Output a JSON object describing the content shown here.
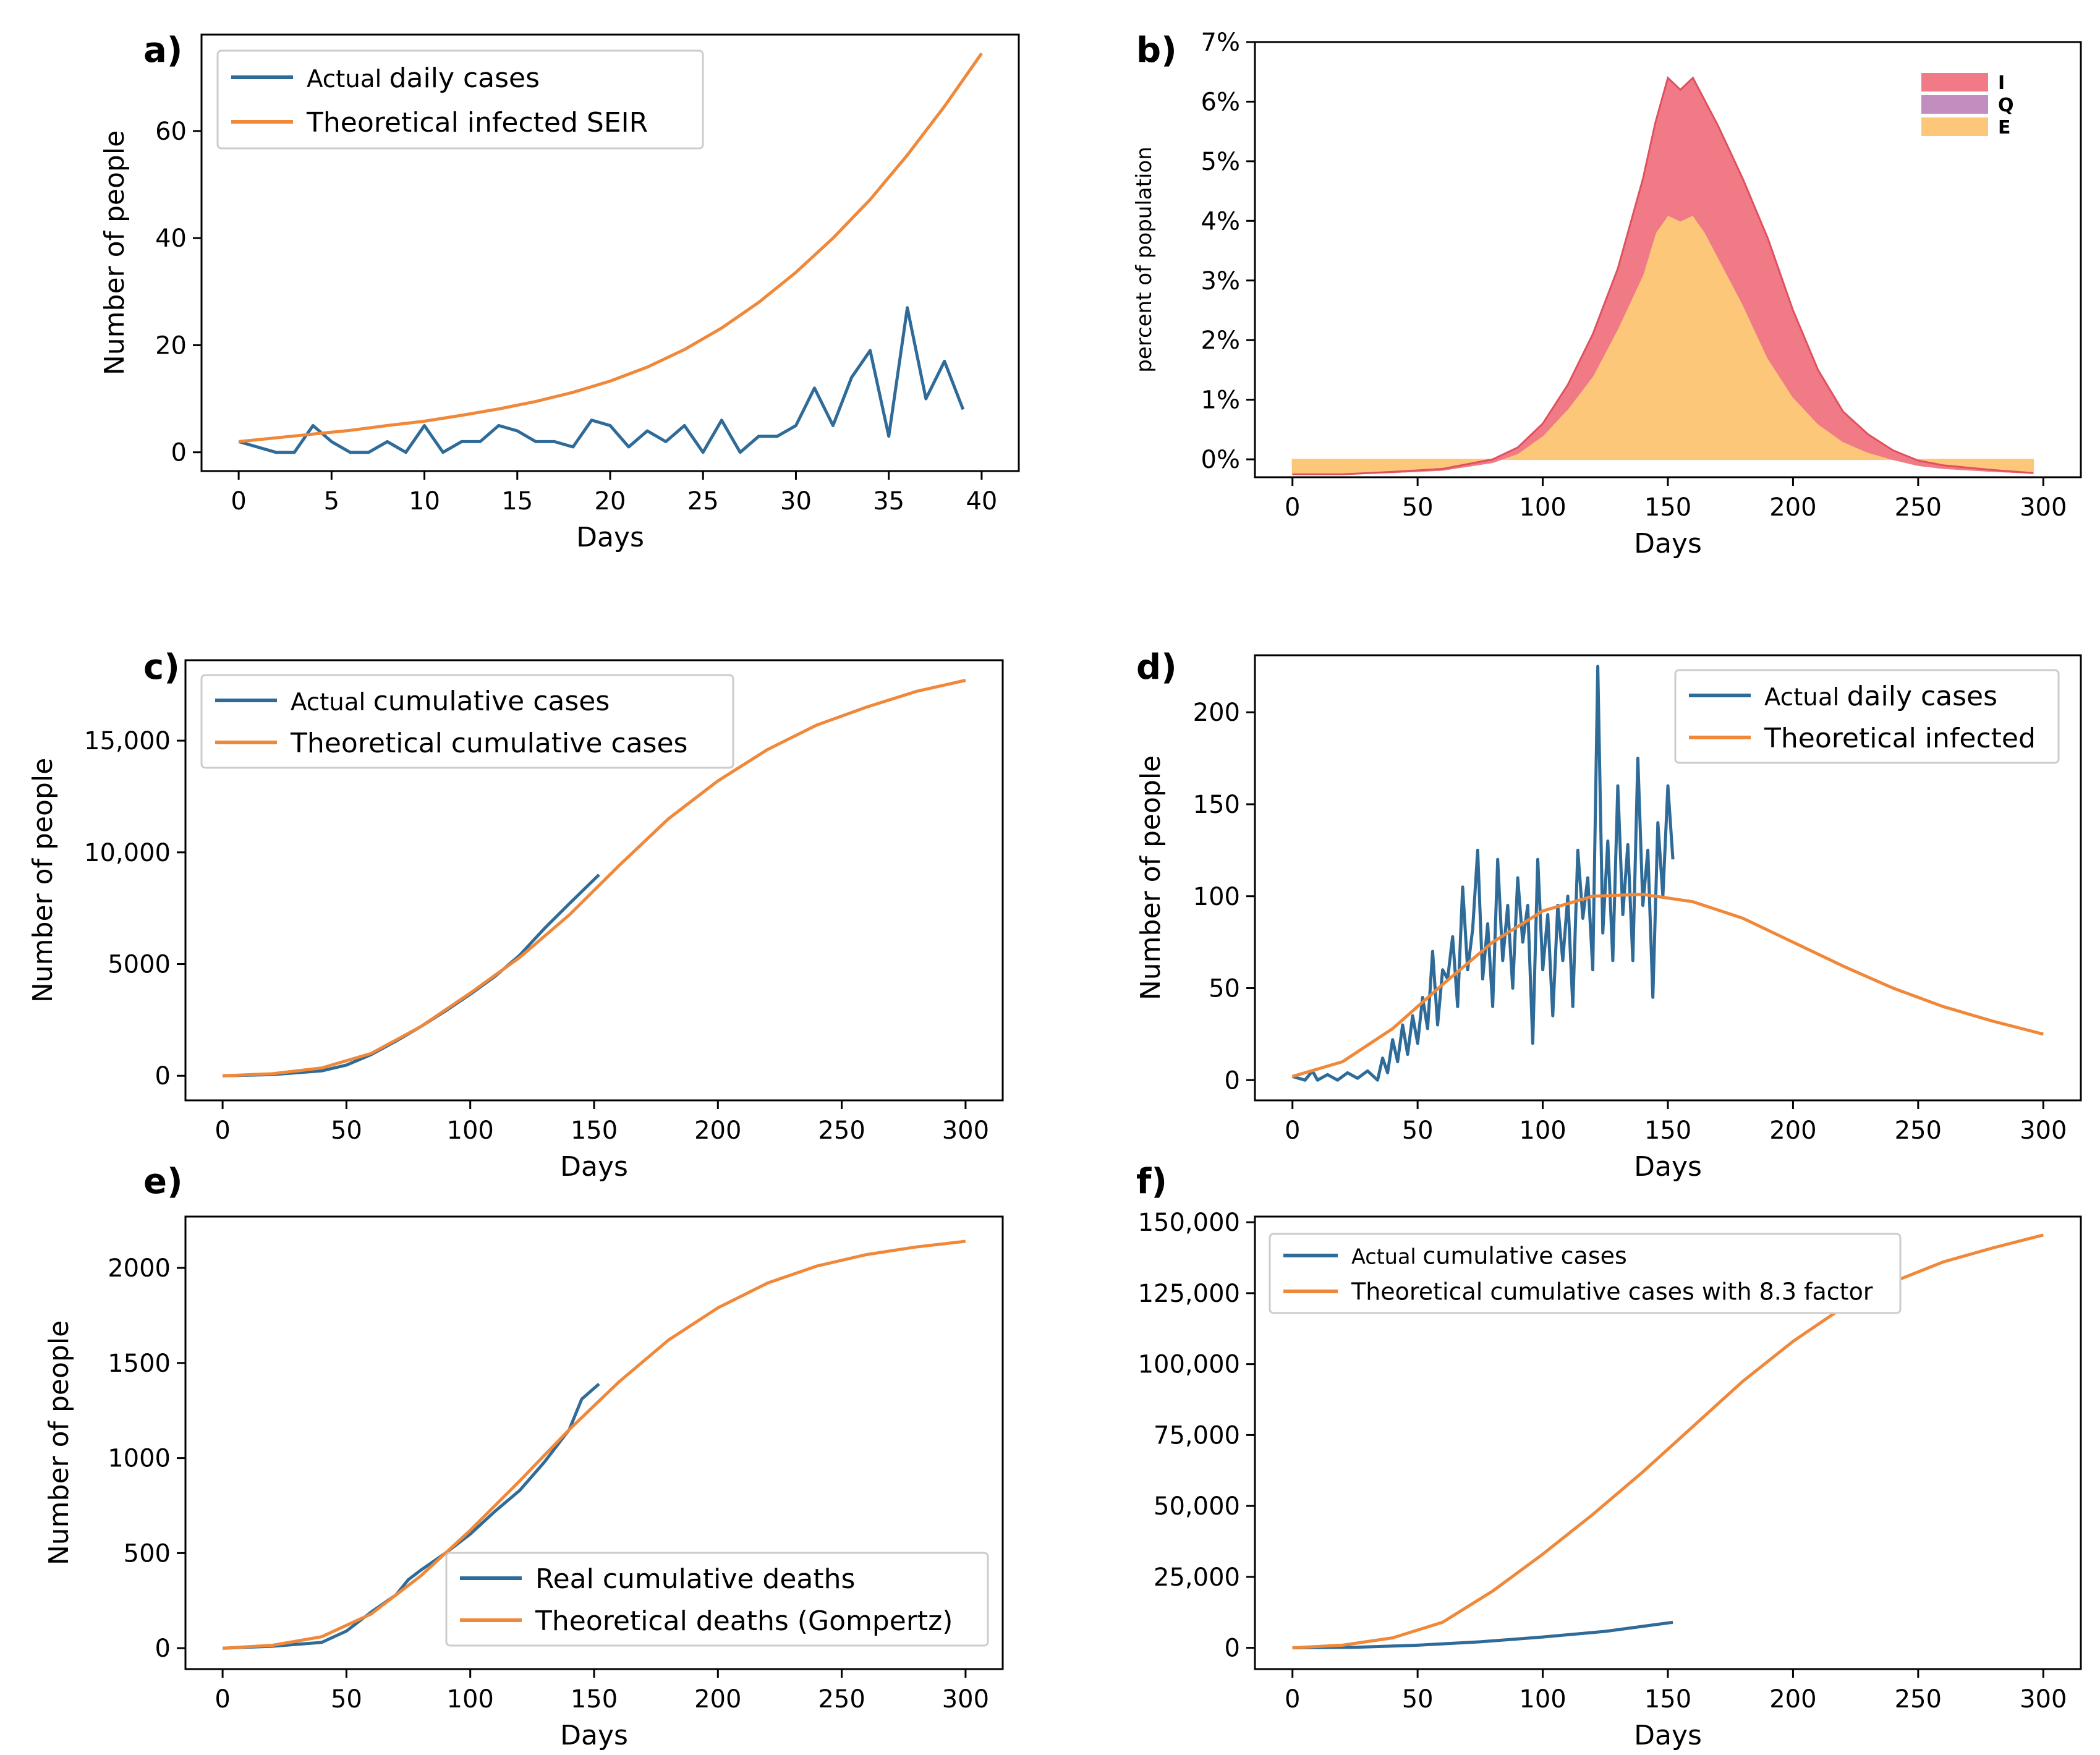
{
  "colors": {
    "blue": "#2f6b98",
    "orange": "#f0883a",
    "red": "#f07a85",
    "purple": "#c28ec0",
    "yellow": "#fdc77a"
  },
  "chart_data": [
    {
      "id": "a",
      "panel_label": "a)",
      "type": "line",
      "xlabel": "Days",
      "ylabel": "Number of  people",
      "xlim": [
        -2,
        42
      ],
      "ylim": [
        -3.5,
        78
      ],
      "xticks": [
        0,
        5,
        10,
        15,
        20,
        25,
        30,
        35,
        40
      ],
      "xtick_labels": [
        "0",
        "5",
        "10",
        "15",
        "20",
        "25",
        "30",
        "35",
        "40"
      ],
      "yticks": [
        0,
        20,
        40,
        60
      ],
      "ytick_labels": [
        "0",
        "20",
        "40",
        "60"
      ],
      "series": [
        {
          "name": "Actual daily cases",
          "legend_prefix": "Actual",
          "legend_rest": "daily cases",
          "color": "#2f6b98",
          "x": [
            0,
            1,
            2,
            3,
            4,
            5,
            6,
            7,
            8,
            9,
            10,
            11,
            12,
            13,
            14,
            15,
            16,
            17,
            18,
            19,
            20,
            21,
            22,
            23,
            24,
            25,
            26,
            27,
            28,
            29,
            30,
            31,
            32,
            33,
            34,
            35,
            36,
            37,
            38,
            39
          ],
          "y": [
            2,
            1,
            0,
            0,
            5,
            2,
            0,
            0,
            2,
            0,
            5,
            0,
            2,
            2,
            5,
            4,
            2,
            2,
            1,
            6,
            5,
            1,
            4,
            2,
            5,
            0,
            6,
            0,
            3,
            3,
            5,
            12,
            5,
            14,
            19,
            3,
            27,
            10,
            17,
            8
          ]
        },
        {
          "name": "Theoretical infected SEIR",
          "legend_prefix": "",
          "legend_rest": "Theoretical infected SEIR",
          "color": "#f0883a",
          "x": [
            0,
            2,
            4,
            6,
            8,
            10,
            12,
            14,
            16,
            18,
            20,
            22,
            24,
            26,
            28,
            30,
            32,
            34,
            36,
            38,
            40
          ],
          "y": [
            2.0,
            2.7,
            3.4,
            4.1,
            5.0,
            5.8,
            6.9,
            8.1,
            9.5,
            11.2,
            13.3,
            15.9,
            19.2,
            23.2,
            28.0,
            33.6,
            40.0,
            47.2,
            55.5,
            64.6,
            74.5
          ]
        }
      ]
    },
    {
      "id": "b",
      "panel_label": "b)",
      "type": "area",
      "xlabel": "Days",
      "ylabel": "percent of population",
      "xlim": [
        -15,
        315
      ],
      "ylim": [
        -0.3,
        7.0
      ],
      "xticks": [
        0,
        50,
        100,
        150,
        200,
        250,
        300
      ],
      "xtick_labels": [
        "0",
        "50",
        "100",
        "150",
        "200",
        "250",
        "300"
      ],
      "yticks": [
        0,
        1,
        2,
        3,
        4,
        5,
        6,
        7
      ],
      "ytick_labels": [
        "0%",
        "1%",
        "2%",
        "3%",
        "4%",
        "5%",
        "6%",
        "7%"
      ],
      "x": [
        0,
        20,
        40,
        60,
        80,
        90,
        100,
        110,
        120,
        130,
        140,
        145,
        150,
        155,
        160,
        165,
        170,
        180,
        190,
        200,
        210,
        220,
        230,
        240,
        250,
        260,
        280,
        296
      ],
      "series": [
        {
          "name": "E",
          "color": "#fdc77a",
          "values": [
            -0.25,
            -0.25,
            -0.22,
            -0.18,
            -0.05,
            0.1,
            0.4,
            0.85,
            1.4,
            2.2,
            3.1,
            3.8,
            4.1,
            4.0,
            4.1,
            3.8,
            3.4,
            2.6,
            1.7,
            1.05,
            0.6,
            0.3,
            0.12,
            0.0,
            -0.1,
            -0.15,
            -0.2,
            -0.23
          ]
        },
        {
          "name": "Q",
          "color": "#c28ec0",
          "values": [
            0,
            0,
            0,
            0,
            0,
            0,
            0,
            0,
            0,
            0,
            0,
            0,
            0,
            0,
            0,
            0,
            0,
            0,
            0,
            0,
            0,
            0,
            0,
            0,
            0,
            0,
            0,
            0
          ]
        },
        {
          "name": "I",
          "color": "#f07a85",
          "values": [
            0,
            0,
            0.01,
            0.02,
            0.05,
            0.1,
            0.2,
            0.4,
            0.7,
            1.0,
            1.6,
            1.85,
            2.3,
            2.2,
            2.3,
            2.2,
            2.2,
            2.1,
            2.0,
            1.45,
            0.9,
            0.5,
            0.3,
            0.15,
            0.08,
            0.05,
            0.02,
            0.0
          ]
        }
      ]
    },
    {
      "id": "c",
      "panel_label": "c)",
      "type": "line",
      "xlabel": "Days",
      "ylabel": "Number of  people",
      "xlim": [
        -15,
        315
      ],
      "ylim": [
        -1100,
        18600
      ],
      "xticks": [
        0,
        50,
        100,
        150,
        200,
        250,
        300
      ],
      "xtick_labels": [
        "0",
        "50",
        "100",
        "150",
        "200",
        "250",
        "300"
      ],
      "yticks": [
        0,
        5000,
        10000,
        15000
      ],
      "ytick_labels": [
        "0",
        "5000",
        "10,000",
        "15,000"
      ],
      "series": [
        {
          "name": "Actual cumulative cases",
          "legend_prefix": "Actual",
          "legend_rest": "cumulative cases",
          "color": "#2f6b98",
          "x": [
            0,
            20,
            40,
            50,
            60,
            70,
            80,
            90,
            100,
            110,
            120,
            130,
            140,
            152
          ],
          "y": [
            0,
            50,
            220,
            480,
            950,
            1550,
            2200,
            2900,
            3650,
            4450,
            5400,
            6600,
            7700,
            9000
          ]
        },
        {
          "name": "Theoretical cumulative cases",
          "legend_prefix": "",
          "legend_rest": "Theoretical cumulative cases",
          "color": "#f0883a",
          "x": [
            0,
            20,
            40,
            60,
            80,
            100,
            120,
            140,
            160,
            180,
            200,
            220,
            240,
            260,
            280,
            300
          ],
          "y": [
            0,
            90,
            350,
            1000,
            2200,
            3700,
            5300,
            7200,
            9400,
            11500,
            13200,
            14600,
            15700,
            16500,
            17200,
            17700
          ]
        }
      ]
    },
    {
      "id": "d",
      "panel_label": "d)",
      "type": "line",
      "xlabel": "Days",
      "ylabel": "Number of  people",
      "xlim": [
        -15,
        315
      ],
      "ylim": [
        -11,
        231
      ],
      "xticks": [
        0,
        50,
        100,
        150,
        200,
        250,
        300
      ],
      "xtick_labels": [
        "0",
        "50",
        "100",
        "150",
        "200",
        "250",
        "300"
      ],
      "yticks": [
        0,
        50,
        100,
        150,
        200
      ],
      "ytick_labels": [
        "0",
        "50",
        "100",
        "150",
        "200"
      ],
      "series": [
        {
          "name": "Actual daily cases",
          "legend_prefix": "Actual",
          "legend_rest": "daily cases",
          "color": "#2f6b98",
          "x": [
            0,
            5,
            8,
            10,
            14,
            18,
            22,
            26,
            30,
            34,
            36,
            38,
            40,
            42,
            44,
            46,
            48,
            50,
            52,
            54,
            56,
            58,
            60,
            62,
            64,
            66,
            68,
            70,
            72,
            74,
            76,
            78,
            80,
            82,
            84,
            86,
            88,
            90,
            92,
            94,
            96,
            98,
            100,
            102,
            104,
            106,
            108,
            110,
            112,
            114,
            116,
            118,
            120,
            122,
            124,
            126,
            128,
            130,
            132,
            134,
            136,
            138,
            140,
            142,
            144,
            146,
            148,
            150,
            152
          ],
          "y": [
            2,
            0,
            5,
            0,
            3,
            0,
            4,
            1,
            5,
            0,
            12,
            4,
            22,
            10,
            30,
            14,
            35,
            20,
            45,
            28,
            70,
            30,
            60,
            55,
            78,
            40,
            105,
            60,
            82,
            125,
            55,
            85,
            40,
            120,
            65,
            95,
            50,
            110,
            75,
            95,
            20,
            120,
            60,
            90,
            35,
            95,
            65,
            100,
            40,
            125,
            88,
            110,
            60,
            225,
            80,
            130,
            65,
            160,
            90,
            128,
            65,
            175,
            95,
            125,
            45,
            140,
            100,
            160,
            120
          ]
        },
        {
          "name": "Theoretical infected",
          "legend_prefix": "",
          "legend_rest": "Theoretical infected",
          "color": "#f0883a",
          "x": [
            0,
            20,
            40,
            60,
            80,
            100,
            120,
            140,
            160,
            180,
            200,
            220,
            240,
            260,
            280,
            300
          ],
          "y": [
            2,
            10,
            28,
            52,
            75,
            92,
            100,
            101,
            97,
            88,
            75,
            62,
            50,
            40,
            32,
            25
          ]
        }
      ]
    },
    {
      "id": "e",
      "panel_label": "e)",
      "type": "line",
      "xlabel": "Days",
      "ylabel": "Number of  people",
      "xlim": [
        -15,
        315
      ],
      "ylim": [
        -110,
        2270
      ],
      "xticks": [
        0,
        50,
        100,
        150,
        200,
        250,
        300
      ],
      "xtick_labels": [
        "0",
        "50",
        "100",
        "150",
        "200",
        "250",
        "300"
      ],
      "yticks": [
        0,
        500,
        1000,
        1500,
        2000
      ],
      "ytick_labels": [
        "0",
        "500",
        "1000",
        "1500",
        "2000"
      ],
      "series": [
        {
          "name": "Real cumulative deaths",
          "legend_prefix": "",
          "legend_rest": "Real cumulative deaths",
          "color": "#2f6b98",
          "x": [
            0,
            20,
            40,
            50,
            60,
            70,
            75,
            80,
            90,
            100,
            110,
            120,
            130,
            140,
            145,
            152
          ],
          "y": [
            0,
            10,
            30,
            90,
            190,
            280,
            360,
            410,
            500,
            600,
            720,
            830,
            980,
            1150,
            1310,
            1390
          ]
        },
        {
          "name": "Theoretical deaths (Gompertz)",
          "legend_prefix": "",
          "legend_rest": "Theoretical deaths (Gompertz)",
          "color": "#f0883a",
          "x": [
            0,
            20,
            40,
            60,
            80,
            100,
            120,
            140,
            160,
            180,
            200,
            220,
            240,
            260,
            280,
            300
          ],
          "y": [
            0,
            15,
            60,
            180,
            380,
            620,
            880,
            1150,
            1400,
            1620,
            1790,
            1920,
            2010,
            2070,
            2110,
            2140
          ]
        }
      ]
    },
    {
      "id": "f",
      "panel_label": "f)",
      "type": "line",
      "xlabel": "Days",
      "ylabel": "",
      "xlim": [
        -15,
        315
      ],
      "ylim": [
        -7500,
        152000
      ],
      "xticks": [
        0,
        50,
        100,
        150,
        200,
        250,
        300
      ],
      "xtick_labels": [
        "0",
        "50",
        "100",
        "150",
        "200",
        "250",
        "300"
      ],
      "yticks": [
        0,
        25000,
        50000,
        75000,
        100000,
        125000,
        150000
      ],
      "ytick_labels": [
        "0",
        "25,000",
        "50,000",
        "75,000",
        "100,000",
        "125,000",
        "150,000"
      ],
      "series": [
        {
          "name": "Actual cumulative cases",
          "legend_prefix": "Actual",
          "legend_rest": "cumulative cases",
          "color": "#2f6b98",
          "x": [
            0,
            25,
            50,
            75,
            100,
            125,
            152
          ],
          "y": [
            0,
            200,
            900,
            2100,
            3800,
            5800,
            9000
          ]
        },
        {
          "name": "Theoretical cumulative cases with 8.3 factor",
          "legend_prefix": "",
          "legend_rest": "Theoretical cumulative cases with 8.3 factor",
          "color": "#f0883a",
          "x": [
            0,
            20,
            40,
            60,
            80,
            100,
            120,
            140,
            160,
            180,
            200,
            220,
            240,
            260,
            280,
            300
          ],
          "y": [
            0,
            900,
            3500,
            9000,
            20000,
            33000,
            47000,
            62000,
            78000,
            94000,
            108000,
            120000,
            129000,
            136000,
            141000,
            145500
          ]
        }
      ]
    }
  ]
}
